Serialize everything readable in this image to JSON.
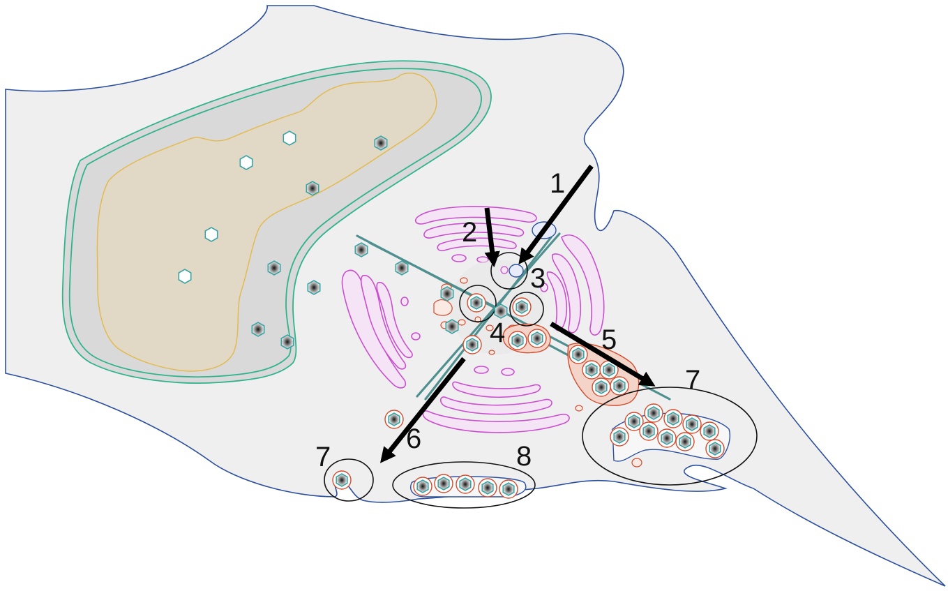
{
  "diagram": {
    "step_labels": [
      "1",
      "2",
      "3",
      "4",
      "5",
      "6",
      "7",
      "7",
      "8"
    ],
    "colors": {
      "cell_membrane": "#2b4f9e",
      "nuclear_envelope": "#2fb38c",
      "nucleoplasm": "#e1d8c6",
      "golgi": "#c94fcf",
      "vesicle_membrane": "#d14a2c",
      "microtubule": "#4f8f8f",
      "capsid": "#3aa3a3"
    },
    "icons": [
      "nucleocapsid-empty-icon",
      "nucleocapsid-full-icon",
      "arrow-icon"
    ]
  }
}
